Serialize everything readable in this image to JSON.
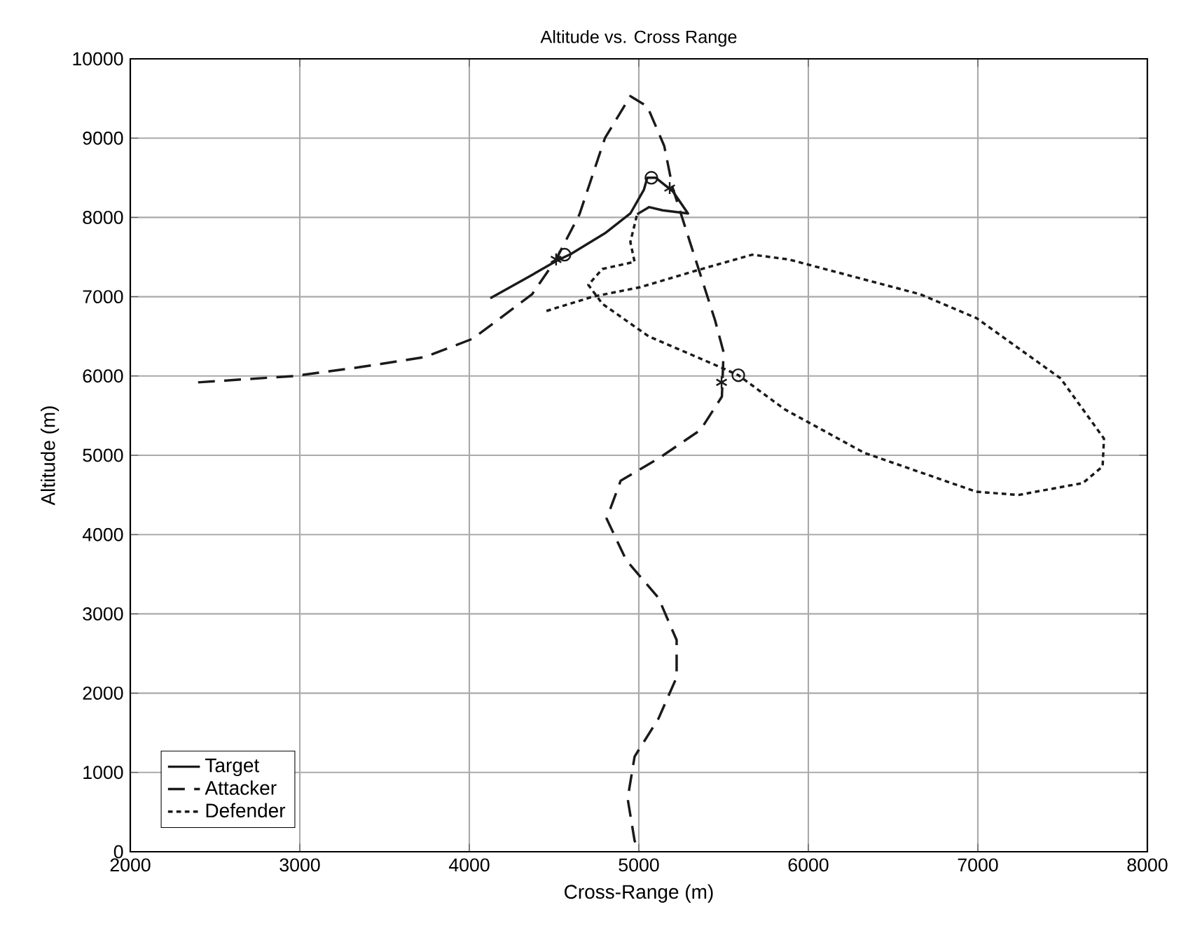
{
  "chart_data": {
    "type": "line",
    "title": "Altitude vs. Cross Range",
    "xlabel": "Cross-Range (m)",
    "ylabel": "Altitude (m)",
    "xlim": [
      2000,
      8000
    ],
    "ylim": [
      0,
      10000
    ],
    "xticks": [
      2000,
      3000,
      4000,
      5000,
      6000,
      7000,
      8000
    ],
    "yticks": [
      0,
      1000,
      2000,
      3000,
      4000,
      5000,
      6000,
      7000,
      8000,
      9000,
      10000
    ],
    "grid": true,
    "legend": "bottom left",
    "series": [
      {
        "name": "Target",
        "color": "#1a1a1a",
        "line_style": "solid",
        "x": [
          4124,
          4350,
          4512,
          4600,
          4800,
          4950,
          5030,
          5050,
          5100,
          5200,
          5290,
          5140,
          5060,
          4990
        ],
        "values": [
          6980,
          7250,
          7450,
          7540,
          7800,
          8050,
          8350,
          8500,
          8500,
          8330,
          8050,
          8090,
          8130,
          8040
        ]
      },
      {
        "name": "Attacker",
        "color": "#1a1a1a",
        "line_style": "dashed",
        "x": [
          2400,
          2970,
          3350,
          3740,
          4020,
          4370,
          4512,
          4650,
          4800,
          4950,
          5050,
          5150,
          5200,
          5300,
          5450,
          5500,
          5490,
          5364,
          5116,
          4893,
          4810,
          4925,
          5116,
          5223,
          5223,
          5116,
          4975,
          4934,
          4975,
          5000
        ],
        "values": [
          5920,
          6000,
          6110,
          6240,
          6470,
          7030,
          7470,
          8040,
          9000,
          9530,
          9400,
          8900,
          8370,
          7700,
          6700,
          6300,
          5740,
          5320,
          4960,
          4680,
          4200,
          3680,
          3200,
          2670,
          2200,
          1680,
          1200,
          670,
          140,
          0
        ]
      },
      {
        "name": "Defender",
        "color": "#1a1a1a",
        "line_style": "dotted",
        "x": [
          4455,
          4727,
          5008,
          5339,
          5669,
          5884,
          6661,
          6992,
          7488,
          7744,
          7736,
          7620,
          7240,
          6992,
          6331,
          5860,
          5587,
          5504,
          5058,
          4785,
          4702,
          4785,
          4975,
          4950,
          4990
        ],
        "values": [
          6820,
          7000,
          7120,
          7330,
          7530,
          7470,
          7030,
          6730,
          5970,
          5210,
          4860,
          4650,
          4500,
          4540,
          5030,
          5580,
          6010,
          6090,
          6500,
          6910,
          7150,
          7350,
          7440,
          7690,
          8040
        ]
      },
      {
        "type": "scatter",
        "marker": "cross",
        "color": "#1a1a1a",
        "x": [
          4512,
          5182,
          5488
        ],
        "values": [
          7470,
          8370,
          5920
        ]
      },
      {
        "type": "scatter",
        "marker": "circle",
        "color": "#1a1a1a",
        "x": [
          4562,
          5074,
          5587
        ],
        "values": [
          7530,
          8500,
          6010
        ]
      }
    ]
  }
}
